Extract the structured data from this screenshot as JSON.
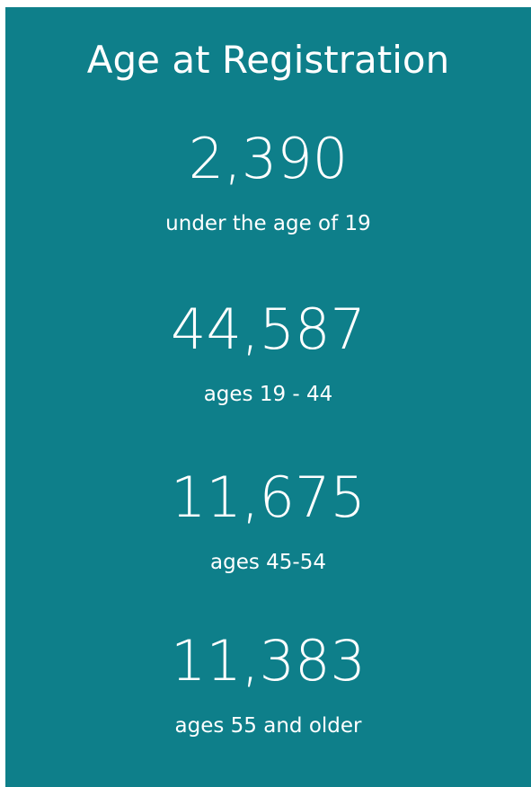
{
  "title": "Age at Registration",
  "items": [
    {
      "value": "2,390",
      "label": "under the age of 19"
    },
    {
      "value": "44,587",
      "label": "ages 19 - 44"
    },
    {
      "value": "11,675",
      "label": "ages 45-54"
    },
    {
      "value": "11,383",
      "label": "ages 55 and older"
    }
  ]
}
